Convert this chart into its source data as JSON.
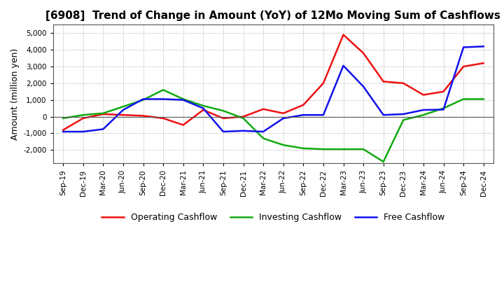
{
  "title": "[6908]  Trend of Change in Amount (YoY) of 12Mo Moving Sum of Cashflows",
  "ylabel": "Amount (million yen)",
  "xlabels": [
    "Sep-19",
    "Dec-19",
    "Mar-20",
    "Jun-20",
    "Sep-20",
    "Dec-20",
    "Mar-21",
    "Jun-21",
    "Sep-21",
    "Dec-21",
    "Mar-22",
    "Jun-22",
    "Sep-22",
    "Dec-22",
    "Mar-23",
    "Jun-23",
    "Sep-23",
    "Dec-23",
    "Mar-24",
    "Jun-24",
    "Sep-24",
    "Dec-24"
  ],
  "operating": [
    -800,
    -100,
    150,
    100,
    50,
    -100,
    -500,
    400,
    -100,
    0,
    450,
    200,
    700,
    2000,
    4900,
    3800,
    2100,
    2000,
    1300,
    1500,
    3000,
    3200
  ],
  "investing": [
    -100,
    100,
    200,
    600,
    1000,
    1600,
    1050,
    650,
    350,
    -100,
    -1300,
    -1700,
    -1900,
    -1950,
    -1950,
    -1950,
    -2700,
    -200,
    100,
    500,
    1050,
    1050
  ],
  "free": [
    -900,
    -900,
    -750,
    400,
    1050,
    1050,
    1000,
    500,
    -900,
    -850,
    -900,
    -100,
    100,
    100,
    3050,
    1800,
    100,
    150,
    400,
    420,
    4150,
    4200
  ],
  "ylim": [
    -2800,
    5500
  ],
  "yticks": [
    -2000,
    -1000,
    0,
    1000,
    2000,
    3000,
    4000,
    5000
  ],
  "op_color": "#ee1111",
  "inv_color": "#11aa11",
  "free_color": "#1111ee",
  "bg_color": "#ffffff",
  "grid_color": "#999999",
  "title_fontsize": 11,
  "legend_labels": [
    "Operating Cashflow",
    "Investing Cashflow",
    "Free Cashflow"
  ]
}
